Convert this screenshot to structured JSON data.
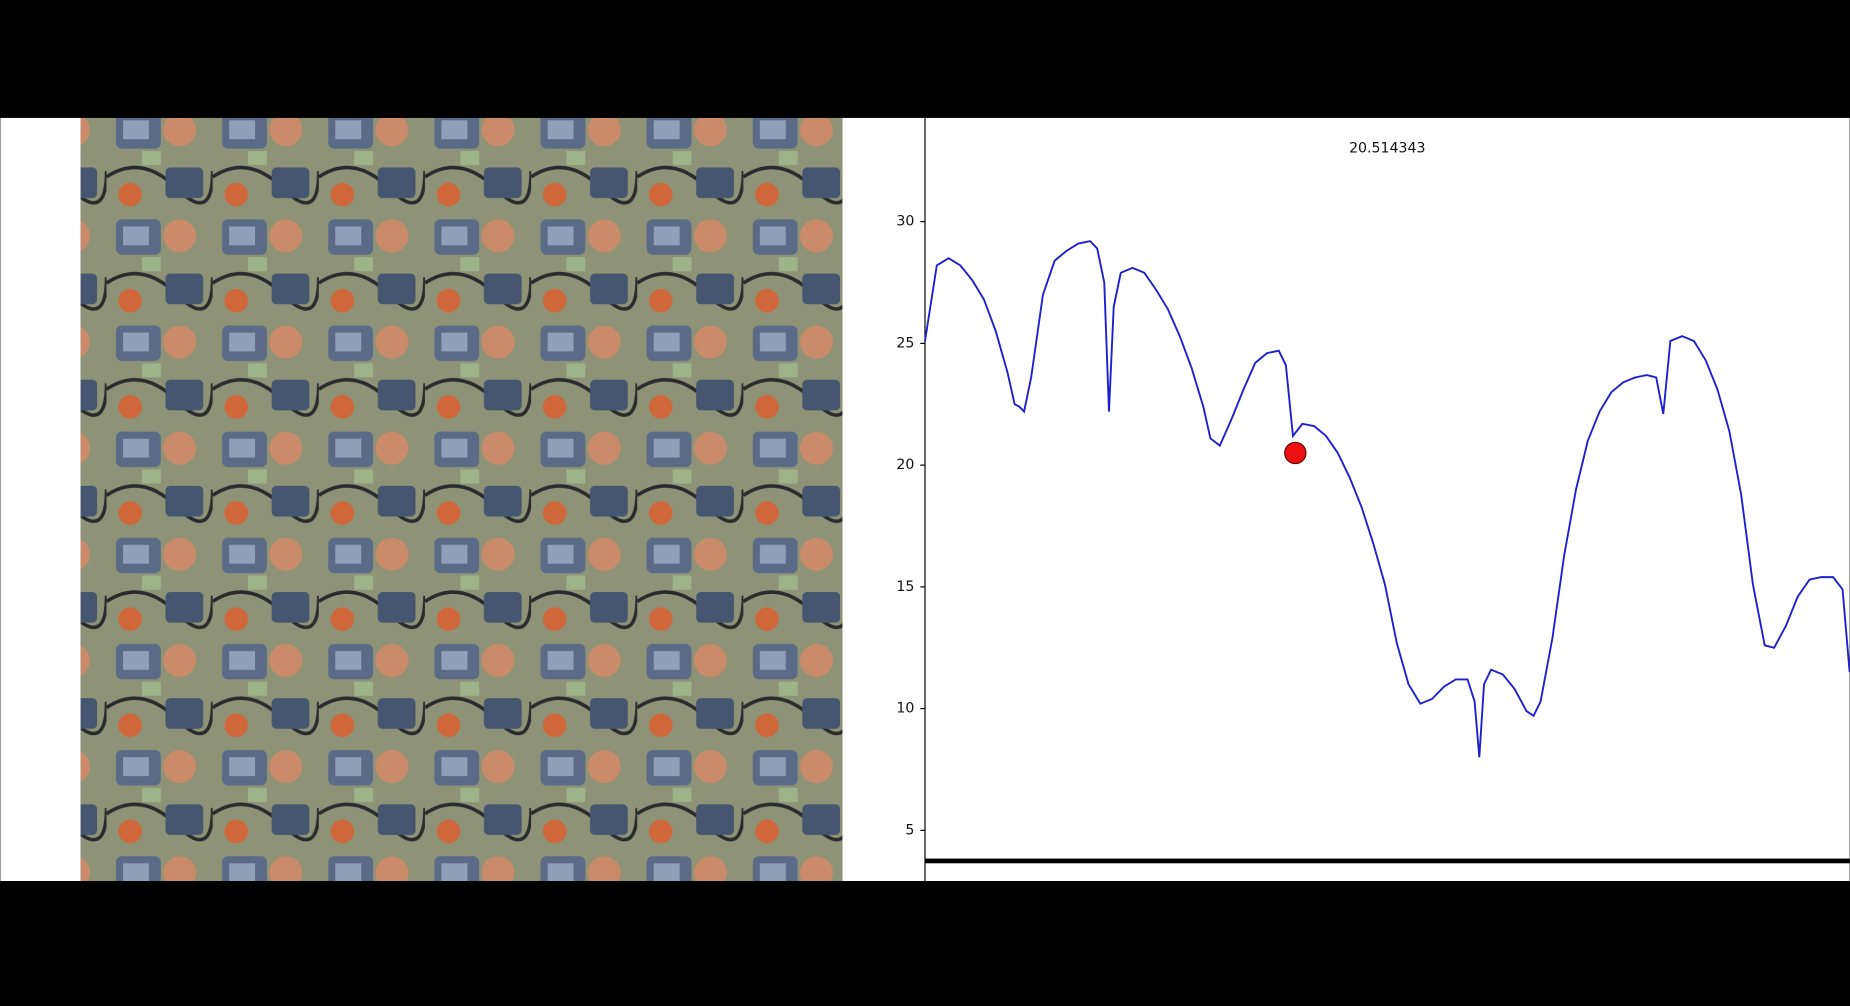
{
  "chart_data": {
    "type": "line",
    "title": "20.514343",
    "x": [
      0,
      10,
      20,
      30,
      40,
      50,
      60,
      70,
      76,
      80,
      84,
      90,
      100,
      110,
      120,
      130,
      140,
      146,
      152,
      156,
      160,
      166,
      176,
      186,
      196,
      206,
      216,
      226,
      236,
      242,
      250,
      260,
      270,
      280,
      290,
      300,
      306,
      312,
      320,
      330,
      340,
      350,
      360,
      370,
      380,
      390,
      400,
      410,
      420,
      430,
      440,
      450,
      460,
      466,
      470,
      474,
      480,
      490,
      500,
      510,
      516,
      522,
      532,
      542,
      552,
      562,
      572,
      582,
      592,
      602,
      612,
      620,
      626,
      632,
      642,
      652,
      662,
      672,
      682,
      692,
      702,
      712,
      720,
      730,
      740,
      750,
      760,
      770,
      778,
      784
    ],
    "series": [
      {
        "color": "#1f1fd0",
        "values": [
          25.1,
          28.2,
          28.5,
          28.2,
          27.6,
          26.8,
          25.5,
          23.8,
          22.5,
          22.4,
          22.2,
          23.6,
          27.0,
          28.4,
          28.8,
          29.1,
          29.2,
          28.9,
          27.5,
          22.2,
          26.5,
          27.9,
          28.1,
          27.9,
          27.2,
          26.4,
          25.3,
          24.0,
          22.4,
          21.1,
          20.8,
          21.9,
          23.1,
          24.2,
          24.6,
          24.7,
          24.1,
          21.2,
          21.7,
          21.6,
          21.2,
          20.5,
          19.5,
          18.3,
          16.8,
          15.1,
          12.7,
          11.0,
          10.2,
          10.4,
          10.9,
          11.2,
          11.2,
          10.3,
          8.0,
          11.0,
          11.6,
          11.4,
          10.8,
          9.9,
          9.7,
          10.3,
          12.9,
          16.3,
          19.0,
          21.0,
          22.2,
          23.0,
          23.4,
          23.6,
          23.7,
          23.6,
          22.1,
          25.1,
          25.3,
          25.1,
          24.3,
          23.1,
          21.4,
          18.8,
          15.1,
          12.6,
          12.5,
          13.4,
          14.6,
          15.3,
          15.4,
          15.4,
          14.9,
          11.5
        ]
      }
    ],
    "marker": {
      "x": 314,
      "y": 20.5,
      "color": "#ee1111"
    },
    "xlim": [
      0,
      784
    ],
    "ylim": [
      2.92,
      34.26
    ],
    "yticks": [
      5,
      10,
      15,
      20,
      25,
      30
    ]
  }
}
